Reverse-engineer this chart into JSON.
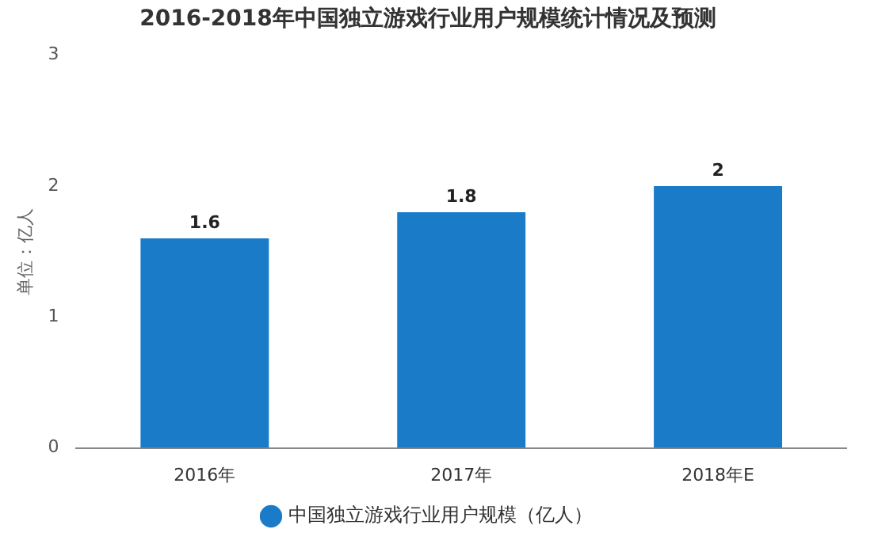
{
  "chart_data": {
    "type": "bar",
    "title": "2016-2018年中国独立游戏行业用户规模统计情况及预测",
    "ylabel": "单位：亿人",
    "categories": [
      "2016年",
      "2017年",
      "2018年E"
    ],
    "series": [
      {
        "name": "中国独立游戏行业用户规模（亿人）",
        "color": "#1a7bc9",
        "values": [
          1.6,
          1.8,
          2
        ]
      }
    ],
    "ylim": [
      0,
      3
    ],
    "yticks": [
      0,
      1,
      2,
      3
    ],
    "grid": false,
    "legend": "bottom",
    "data_labels": true
  }
}
